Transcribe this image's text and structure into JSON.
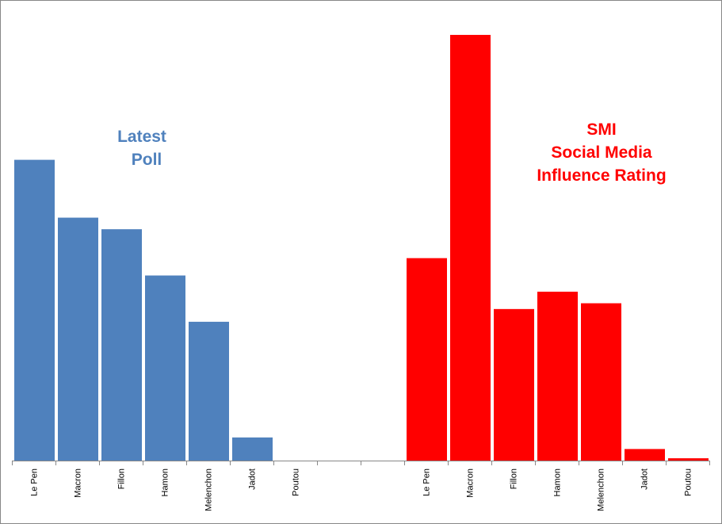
{
  "chart_data": {
    "type": "bar",
    "title": "",
    "xlabel": "",
    "ylabel": "",
    "ylim": [
      0,
      38
    ],
    "grid": false,
    "groups": [
      {
        "name": "Latest Poll",
        "annotation": [
          "Latest",
          "Poll"
        ],
        "color": "#4F81BD",
        "categories": [
          "Le Pen",
          "Macron",
          "Fillon",
          "Hamon",
          "Melenchon",
          "Jadot",
          "Poutou"
        ],
        "values": [
          26,
          21,
          20,
          16,
          12,
          2,
          0
        ]
      },
      {
        "name": "SMI Social Media Influence Rating",
        "annotation": [
          "SMI",
          "Social Media",
          "Influence Rating"
        ],
        "color": "#FF0000",
        "categories": [
          "Le Pen",
          "Macron",
          "Fillon",
          "Hamon",
          "Melenchon",
          "Jadot",
          "Poutou"
        ],
        "values": [
          17.5,
          36.8,
          13.1,
          14.6,
          13.6,
          1.0,
          0.2
        ]
      }
    ]
  }
}
